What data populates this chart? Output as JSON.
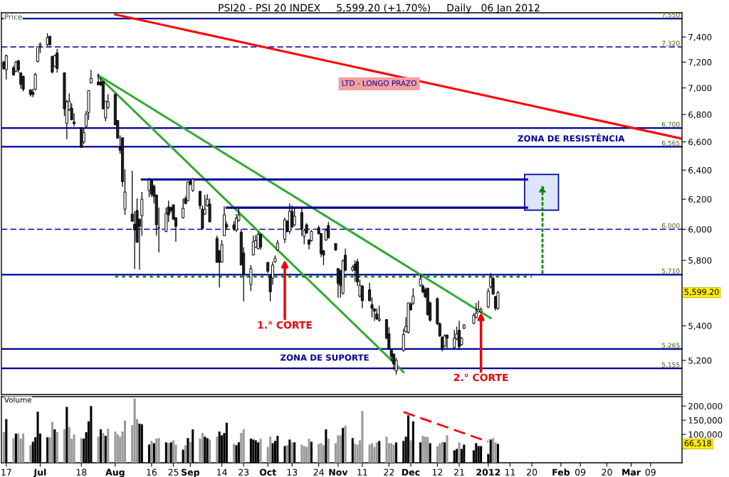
{
  "chart_data": [
    {
      "type": "candlestick",
      "title": "PSI20 - PSI 20 INDEX     5,599.20 (+1.70%)     Daily   06 Jan 2012",
      "ylabel": "Price",
      "x": [
        "2011-06-16",
        "2011-06-17",
        "2011-06-20",
        "2011-06-21",
        "2011-06-22",
        "2011-06-23",
        "2011-06-24",
        "2011-06-27",
        "2011-06-28",
        "2011-06-29",
        "2011-06-30",
        "2011-07-01",
        "2011-07-04",
        "2011-07-05",
        "2011-07-06",
        "2011-07-07",
        "2011-07-08",
        "2011-07-11",
        "2011-07-12",
        "2011-07-13",
        "2011-07-14",
        "2011-07-15",
        "2011-07-18",
        "2011-07-19",
        "2011-07-20",
        "2011-07-21",
        "2011-07-22",
        "2011-07-25",
        "2011-07-26",
        "2011-07-27",
        "2011-07-28",
        "2011-07-29",
        "2011-08-01",
        "2011-08-02",
        "2011-08-03",
        "2011-08-04",
        "2011-08-05",
        "2011-08-08",
        "2011-08-09",
        "2011-08-10",
        "2011-08-11",
        "2011-08-12",
        "2011-08-15",
        "2011-08-16",
        "2011-08-17",
        "2011-08-18",
        "2011-08-19",
        "2011-08-22",
        "2011-08-23",
        "2011-08-24",
        "2011-08-25",
        "2011-08-26",
        "2011-08-29",
        "2011-08-30",
        "2011-08-31",
        "2011-09-01",
        "2011-09-02",
        "2011-09-05",
        "2011-09-06",
        "2011-09-07",
        "2011-09-08",
        "2011-09-09",
        "2011-09-12",
        "2011-09-13",
        "2011-09-14",
        "2011-09-15",
        "2011-09-16",
        "2011-09-19",
        "2011-09-20",
        "2011-09-21",
        "2011-09-22",
        "2011-09-23",
        "2011-09-26",
        "2011-09-27",
        "2011-09-28",
        "2011-09-29",
        "2011-09-30",
        "2011-10-03",
        "2011-10-04",
        "2011-10-05",
        "2011-10-06",
        "2011-10-07",
        "2011-10-10",
        "2011-10-11",
        "2011-10-12",
        "2011-10-13",
        "2011-10-14",
        "2011-10-17",
        "2011-10-18",
        "2011-10-19",
        "2011-10-20",
        "2011-10-21",
        "2011-10-24",
        "2011-10-25",
        "2011-10-26",
        "2011-10-27",
        "2011-10-28",
        "2011-10-31",
        "2011-11-01",
        "2011-11-02",
        "2011-11-03",
        "2011-11-04",
        "2011-11-07",
        "2011-11-08",
        "2011-11-09",
        "2011-11-10",
        "2011-11-11",
        "2011-11-14",
        "2011-11-15",
        "2011-11-16",
        "2011-11-17",
        "2011-11-18",
        "2011-11-21",
        "2011-11-22",
        "2011-11-23",
        "2011-11-24",
        "2011-11-25",
        "2011-11-28",
        "2011-11-29",
        "2011-11-30",
        "2011-12-01",
        "2011-12-02",
        "2011-12-05",
        "2011-12-06",
        "2011-12-07",
        "2011-12-08",
        "2011-12-09",
        "2011-12-12",
        "2011-12-13",
        "2011-12-14",
        "2011-12-15",
        "2011-12-16",
        "2011-12-19",
        "2011-12-20",
        "2011-12-21",
        "2011-12-22",
        "2011-12-23",
        "2011-12-27",
        "2011-12-28",
        "2011-12-29",
        "2011-12-30",
        "2012-01-02",
        "2012-01-03",
        "2012-01-04",
        "2012-01-05",
        "2012-01-06"
      ],
      "ohlc": [
        [
          7200,
          7210,
          7140,
          7150
        ],
        [
          7140,
          7260,
          7065,
          7250
        ],
        [
          7155,
          7172,
          7094,
          7100
        ],
        [
          7128,
          7210,
          7120,
          7200
        ],
        [
          7210,
          7217,
          7117,
          7140
        ],
        [
          7117,
          7117,
          6995,
          7028
        ],
        [
          7089,
          7094,
          6973,
          6990
        ],
        [
          6985,
          6990,
          6935,
          6950
        ],
        [
          6968,
          6995,
          6930,
          6950
        ],
        [
          6990,
          7115,
          6980,
          7105
        ],
        [
          7205,
          7322,
          7200,
          7322
        ],
        [
          7333,
          7356,
          7272,
          7344
        ],
        [
          7339,
          7430,
          7328,
          7395
        ],
        [
          7405,
          7410,
          7328,
          7339
        ],
        [
          7245,
          7250,
          7111,
          7122
        ],
        [
          7167,
          7260,
          7161,
          7250
        ],
        [
          7272,
          7305,
          7117,
          7150
        ],
        [
          7117,
          7117,
          6790,
          6842
        ],
        [
          6733,
          6910,
          6620,
          6895
        ],
        [
          6837,
          6958,
          6826,
          6900
        ],
        [
          6847,
          6884,
          6760,
          6760
        ],
        [
          6744,
          6810,
          6713,
          6733
        ],
        [
          6703,
          6703,
          6559,
          6560
        ],
        [
          6600,
          6697,
          6585,
          6667
        ],
        [
          6713,
          6826,
          6697,
          6805
        ],
        [
          6815,
          6979,
          6760,
          6979
        ],
        [
          7039,
          7139,
          7034,
          7072
        ],
        [
          7045,
          7111,
          7020,
          7023
        ],
        [
          7045,
          7080,
          7015,
          7023
        ],
        [
          7050,
          7050,
          6842,
          6842
        ],
        [
          6775,
          6900,
          6750,
          6900
        ],
        [
          6852,
          6952,
          6840,
          6895
        ],
        [
          6952,
          6952,
          6723,
          6723
        ],
        [
          6755,
          6760,
          6626,
          6626
        ],
        [
          6559,
          6646,
          6515,
          6540
        ],
        [
          6630,
          6630,
          6283,
          6320
        ],
        [
          6133,
          6405,
          6095,
          6249
        ],
        [
          6100,
          6395,
          6052,
          6052
        ],
        [
          6033,
          6119,
          5745,
          5995
        ],
        [
          6124,
          6205,
          5915,
          5915
        ],
        [
          6067,
          6067,
          5740,
          6019
        ],
        [
          6090,
          6249,
          5958,
          6200
        ],
        [
          6259,
          6346,
          6215,
          6332
        ],
        [
          6327,
          6330,
          6215,
          6234
        ],
        [
          6288,
          6300,
          6171,
          6220
        ],
        [
          6229,
          6229,
          5958,
          6029
        ],
        [
          6010,
          6143,
          5851,
          6010
        ],
        [
          5986,
          6143,
          5980,
          6105
        ],
        [
          6148,
          6190,
          6048,
          6095
        ],
        [
          6143,
          6150,
          6110,
          6124
        ],
        [
          6162,
          6165,
          6060,
          6067
        ],
        [
          6076,
          6080,
          5919,
          6019
        ],
        [
          6076,
          6205,
          6070,
          6138
        ],
        [
          6205,
          6220,
          6165,
          6171
        ],
        [
          6190,
          6322,
          6185,
          6317
        ],
        [
          6322,
          6337,
          6295,
          6302
        ],
        [
          6259,
          6346,
          6250,
          6337
        ],
        [
          6254,
          6254,
          6133,
          6157
        ],
        [
          6133,
          6157,
          6005,
          6005
        ],
        [
          6100,
          6229,
          6095,
          6133
        ],
        [
          6157,
          6234,
          6150,
          6200
        ],
        [
          6167,
          6205,
          6048,
          6048
        ],
        [
          5940,
          5958,
          5787,
          5787
        ],
        [
          5860,
          5865,
          5630,
          5787
        ],
        [
          5790,
          5930,
          5785,
          5900
        ],
        [
          5958,
          6152,
          5958,
          6095
        ],
        [
          6030,
          6050,
          6000,
          6015
        ],
        [
          6029,
          6052,
          5990,
          6005
        ],
        [
          5995,
          6100,
          5981,
          6071
        ],
        [
          6057,
          6143,
          6050,
          6095
        ],
        [
          5981,
          6000,
          5770,
          5770
        ],
        [
          5847,
          5884,
          5546,
          5716
        ],
        [
          5649,
          5770,
          5609,
          5748
        ],
        [
          5835,
          5958,
          5830,
          5919
        ],
        [
          5884,
          5962,
          5880,
          5926
        ],
        [
          5875,
          5981,
          5870,
          5967
        ],
        [
          5967,
          5970,
          5866,
          5884
        ],
        [
          5787,
          5790,
          5720,
          5731
        ],
        [
          5702,
          5710,
          5546,
          5604
        ],
        [
          5689,
          5791,
          5648,
          5770
        ],
        [
          5791,
          5830,
          5785,
          5813
        ],
        [
          5866,
          5930,
          5860,
          5910
        ],
        [
          5935,
          6076,
          5910,
          6062
        ],
        [
          6052,
          6060,
          5980,
          5986
        ],
        [
          5986,
          6171,
          5970,
          6119
        ],
        [
          6119,
          6157,
          6010,
          6014
        ],
        [
          6029,
          6143,
          6020,
          6086
        ],
        [
          6110,
          6143,
          5958,
          6000
        ],
        [
          5953,
          5995,
          5902,
          5991
        ],
        [
          6029,
          6040,
          5970,
          5976
        ],
        [
          5930,
          5935,
          5870,
          5903
        ],
        [
          5926,
          5995,
          5920,
          5986
        ],
        [
          6010,
          6024,
          5965,
          5972
        ],
        [
          5972,
          5975,
          5820,
          5842
        ],
        [
          5861,
          5865,
          5770,
          5833
        ],
        [
          5930,
          6005,
          5925,
          5991
        ],
        [
          6024,
          6048,
          5940,
          5944
        ],
        [
          5907,
          5910,
          5860,
          5866
        ],
        [
          5748,
          5750,
          5568,
          5656
        ],
        [
          5735,
          5740,
          5568,
          5643
        ],
        [
          5596,
          5806,
          5588,
          5796
        ],
        [
          5833,
          5875,
          5730,
          5738
        ],
        [
          5738,
          5770,
          5730,
          5756
        ],
        [
          5775,
          5800,
          5665,
          5738
        ],
        [
          5791,
          5810,
          5640,
          5665
        ],
        [
          5578,
          5680,
          5570,
          5643
        ],
        [
          5639,
          5645,
          5504,
          5550
        ],
        [
          5617,
          5660,
          5545,
          5550
        ],
        [
          5525,
          5570,
          5450,
          5504
        ],
        [
          5500,
          5505,
          5429,
          5487
        ],
        [
          5470,
          5504,
          5435,
          5441
        ],
        [
          5433,
          5520,
          5425,
          5441
        ],
        [
          5437,
          5440,
          5320,
          5328
        ],
        [
          5353,
          5392,
          5261,
          5265
        ],
        [
          5261,
          5265,
          5196,
          5222
        ],
        [
          5235,
          5240,
          5146,
          5180
        ],
        [
          5141,
          5214,
          5120,
          5200
        ],
        [
          5256,
          5384,
          5250,
          5349
        ],
        [
          5366,
          5450,
          5360,
          5396
        ],
        [
          5362,
          5537,
          5355,
          5537
        ],
        [
          5529,
          5540,
          5490,
          5496
        ],
        [
          5533,
          5626,
          5525,
          5578
        ],
        [
          5643,
          5712,
          5635,
          5683
        ],
        [
          5639,
          5650,
          5595,
          5604
        ],
        [
          5617,
          5630,
          5565,
          5574
        ],
        [
          5626,
          5630,
          5460,
          5466
        ],
        [
          5537,
          5545,
          5425,
          5433
        ],
        [
          5563,
          5570,
          5405,
          5412
        ],
        [
          5412,
          5420,
          5335,
          5341
        ],
        [
          5332,
          5340,
          5252,
          5265
        ],
        [
          5282,
          5350,
          5275,
          5341
        ],
        [
          5345,
          5350,
          5270,
          5328
        ],
        [
          5274,
          5375,
          5265,
          5328
        ],
        [
          5324,
          5395,
          5315,
          5353
        ],
        [
          5374,
          5430,
          5260,
          5278
        ],
        [
          5290,
          5335,
          5285,
          5328
        ],
        [
          5387,
          5410,
          5380,
          5404
        ],
        [
          5416,
          5475,
          5410,
          5462
        ],
        [
          5450,
          5537,
          5445,
          5475
        ],
        [
          5483,
          5550,
          5478,
          5496
        ],
        [
          5483,
          5510,
          5475,
          5496
        ],
        [
          5512,
          5626,
          5505,
          5608
        ],
        [
          5634,
          5720,
          5625,
          5694
        ],
        [
          5686,
          5700,
          5585,
          5591
        ],
        [
          5574,
          5580,
          5490,
          5504
        ],
        [
          5504,
          5610,
          5495,
          5599.2
        ]
      ],
      "log": true,
      "xlim": [
        "2011-06-15",
        "2012-03-22"
      ],
      "ylim": [
        5010,
        7598
      ],
      "yticks": [
        {
          "value": 5200,
          "label": "5,200"
        },
        {
          "value": 5400,
          "label": "5,400"
        },
        {
          "value": 5800,
          "label": "5,800"
        },
        {
          "value": 6000,
          "label": "6,000"
        },
        {
          "value": 6200,
          "label": "6,200"
        },
        {
          "value": 6400,
          "label": "6,400"
        },
        {
          "value": 6600,
          "label": "6,600"
        },
        {
          "value": 6800,
          "label": "6,800"
        },
        {
          "value": 7000,
          "label": "7,000"
        },
        {
          "value": 7200,
          "label": "7,200"
        },
        {
          "value": 7400,
          "label": "7,400"
        }
      ],
      "tick_labels": "y",
      "grid": false,
      "legend": false,
      "ref_lines": [
        {
          "axis": "y",
          "value": 7550,
          "label": "7,550",
          "color": "#000099"
        },
        {
          "axis": "y",
          "value": 7320,
          "label": "7,320",
          "color": "#000099",
          "line_style": "dashed"
        },
        {
          "axis": "y",
          "value": 6700,
          "label": "6,700",
          "color": "#000099"
        },
        {
          "axis": "y",
          "value": 6565,
          "label": "6,565",
          "color": "#000099"
        },
        {
          "axis": "y",
          "value": 6000,
          "label": "6,000",
          "color": "#000099",
          "line_style": "dashed"
        },
        {
          "axis": "y",
          "value": 5710,
          "label": "5,710",
          "color": "#000099"
        },
        {
          "axis": "y",
          "value": 5265,
          "label": "5,265",
          "color": "#000099"
        },
        {
          "axis": "y",
          "value": 5155,
          "label": "5,155",
          "color": "#000099"
        }
      ],
      "series": [
        {
          "type": "line",
          "color": "#ff0000",
          "x": [
            "2011-08-01",
            "2012-03-22"
          ],
          "values": [
            7584,
            6623
          ]
        },
        {
          "type": "line",
          "color": "#33aa33",
          "x": [
            "2011-07-25",
            "2012-01-03"
          ],
          "values": [
            7097,
            5446
          ]
        },
        {
          "type": "line",
          "color": "#33aa33",
          "x": [
            "2011-07-25",
            "2011-11-28"
          ],
          "values": [
            7090,
            5135
          ]
        },
        {
          "type": "line",
          "color": "#000099",
          "x": [
            "2011-08-12",
            "2012-01-18"
          ],
          "values": [
            6335,
            6335
          ]
        },
        {
          "type": "line",
          "color": "#000099",
          "x": [
            "2011-09-16",
            "2012-01-18"
          ],
          "values": [
            6143,
            6143
          ]
        },
        {
          "type": "line",
          "color": "#008800",
          "line_style": "dotted",
          "x": [
            "2011-08-01",
            "2012-01-20"
          ],
          "values": [
            5698,
            5698
          ]
        },
        {
          "type": "bar",
          "color": "#dde4fb",
          "x": [
            "2012-01-24"
          ],
          "base": [
            6126
          ],
          "values": [
            244
          ]
        }
      ],
      "annotations": [
        "LTD - LONGO PRAZO",
        "ZONA DE RESISTÊNCIA",
        "ZONA DE SUPORTE",
        "5,599.20",
        {
          "text": "1.° CORTE",
          "x": "2011-10-10",
          "y": 5803
        },
        {
          "text": "2.° CORTE",
          "x": "2011-12-30",
          "y": 5480
        }
      ]
    },
    {
      "type": "bar",
      "ylabel": "Volume",
      "x": [
        "2011-06-16",
        "2011-06-17",
        "2011-06-20",
        "2011-06-21",
        "2011-06-22",
        "2011-06-23",
        "2011-06-24",
        "2011-06-27",
        "2011-06-28",
        "2011-06-29",
        "2011-06-30",
        "2011-07-01",
        "2011-07-04",
        "2011-07-05",
        "2011-07-06",
        "2011-07-07",
        "2011-07-08",
        "2011-07-11",
        "2011-07-12",
        "2011-07-13",
        "2011-07-14",
        "2011-07-15",
        "2011-07-18",
        "2011-07-19",
        "2011-07-20",
        "2011-07-21",
        "2011-07-22",
        "2011-07-25",
        "2011-07-26",
        "2011-07-27",
        "2011-07-28",
        "2011-07-29",
        "2011-08-01",
        "2011-08-02",
        "2011-08-03",
        "2011-08-04",
        "2011-08-05",
        "2011-08-08",
        "2011-08-09",
        "2011-08-10",
        "2011-08-11",
        "2011-08-12",
        "2011-08-15",
        "2011-08-16",
        "2011-08-17",
        "2011-08-18",
        "2011-08-19",
        "2011-08-22",
        "2011-08-23",
        "2011-08-24",
        "2011-08-25",
        "2011-08-26",
        "2011-08-29",
        "2011-08-30",
        "2011-08-31",
        "2011-09-01",
        "2011-09-02",
        "2011-09-05",
        "2011-09-06",
        "2011-09-07",
        "2011-09-08",
        "2011-09-09",
        "2011-09-12",
        "2011-09-13",
        "2011-09-14",
        "2011-09-15",
        "2011-09-16",
        "2011-09-19",
        "2011-09-20",
        "2011-09-21",
        "2011-09-22",
        "2011-09-23",
        "2011-09-26",
        "2011-09-27",
        "2011-09-28",
        "2011-09-29",
        "2011-09-30",
        "2011-10-03",
        "2011-10-04",
        "2011-10-05",
        "2011-10-06",
        "2011-10-07",
        "2011-10-10",
        "2011-10-11",
        "2011-10-12",
        "2011-10-13",
        "2011-10-14",
        "2011-10-17",
        "2011-10-18",
        "2011-10-19",
        "2011-10-20",
        "2011-10-21",
        "2011-10-24",
        "2011-10-25",
        "2011-10-26",
        "2011-10-27",
        "2011-10-28",
        "2011-10-31",
        "2011-11-01",
        "2011-11-02",
        "2011-11-03",
        "2011-11-04",
        "2011-11-07",
        "2011-11-08",
        "2011-11-09",
        "2011-11-10",
        "2011-11-11",
        "2011-11-14",
        "2011-11-15",
        "2011-11-16",
        "2011-11-17",
        "2011-11-18",
        "2011-11-21",
        "2011-11-22",
        "2011-11-23",
        "2011-11-24",
        "2011-11-25",
        "2011-11-28",
        "2011-11-29",
        "2011-11-30",
        "2011-12-01",
        "2011-12-02",
        "2011-12-05",
        "2011-12-06",
        "2011-12-07",
        "2011-12-08",
        "2011-12-09",
        "2011-12-12",
        "2011-12-13",
        "2011-12-14",
        "2011-12-15",
        "2011-12-16",
        "2011-12-19",
        "2011-12-20",
        "2011-12-21",
        "2011-12-22",
        "2011-12-23",
        "2011-12-27",
        "2011-12-28",
        "2011-12-29",
        "2011-12-30",
        "2012-01-02",
        "2012-01-03",
        "2012-01-04",
        "2012-01-05",
        "2012-01-06"
      ],
      "values": [
        108000,
        154000,
        87000,
        103000,
        103000,
        85000,
        103000,
        62000,
        74000,
        90000,
        180000,
        103000,
        90000,
        90000,
        144000,
        118000,
        108000,
        118000,
        197000,
        126000,
        85000,
        100000,
        87000,
        85000,
        108000,
        146000,
        200000,
        92000,
        118000,
        105000,
        95000,
        120000,
        110000,
        100000,
        92000,
        110000,
        149000,
        133000,
        226000,
        154000,
        138000,
        136000,
        64000,
        77000,
        69000,
        85000,
        87000,
        72000,
        69000,
        72000,
        79000,
        64000,
        46000,
        62000,
        87000,
        74000,
        118000,
        85000,
        105000,
        92000,
        87000,
        82000,
        92000,
        110000,
        97000,
        105000,
        141000,
        67000,
        62000,
        72000,
        105000,
        118000,
        85000,
        82000,
        79000,
        72000,
        85000,
        56000,
        92000,
        69000,
        77000,
        95000,
        59000,
        62000,
        82000,
        72000,
        72000,
        64000,
        59000,
        56000,
        85000,
        74000,
        67000,
        69000,
        62000,
        118000,
        85000,
        69000,
        97000,
        97000,
        123000,
        131000,
        87000,
        67000,
        64000,
        79000,
        182000,
        64000,
        69000,
        56000,
        72000,
        77000,
        92000,
        69000,
        69000,
        64000,
        72000,
        77000,
        92000,
        167000,
        79000,
        146000,
        72000,
        95000,
        92000,
        90000,
        69000,
        59000,
        69000,
        74000,
        72000,
        97000,
        44000,
        49000,
        72000,
        49000,
        64000,
        44000,
        69000,
        59000,
        59000,
        31000,
        82000,
        87000,
        72000,
        66518
      ],
      "colors": [
        "#999999",
        "#000000",
        "#999999",
        "#000000",
        "#999999",
        "#999999",
        "#999999",
        "#999999",
        "#000000",
        "#000000",
        "#000000",
        "#000000",
        "#000000",
        "#999999",
        "#999999",
        "#000000",
        "#999999",
        "#999999",
        "#000000",
        "#999999",
        "#999999",
        "#999999",
        "#999999",
        "#000000",
        "#000000",
        "#000000",
        "#000000",
        "#999999",
        "#000000",
        "#999999",
        "#000000",
        "#999999",
        "#999999",
        "#999999",
        "#999999",
        "#999999",
        "#999999",
        "#999999",
        "#999999",
        "#999999",
        "#000000",
        "#000000",
        "#000000",
        "#999999",
        "#000000",
        "#999999",
        "#999999",
        "#000000",
        "#999999",
        "#000000",
        "#999999",
        "#999999",
        "#000000",
        "#999999",
        "#000000",
        "#999999",
        "#000000",
        "#999999",
        "#999999",
        "#000000",
        "#000000",
        "#999999",
        "#999999",
        "#000000",
        "#000000",
        "#000000",
        "#000000",
        "#999999",
        "#000000",
        "#000000",
        "#999999",
        "#999999",
        "#000000",
        "#000000",
        "#000000",
        "#000000",
        "#999999",
        "#999999",
        "#999999",
        "#000000",
        "#000000",
        "#000000",
        "#000000",
        "#999999",
        "#000000",
        "#999999",
        "#000000",
        "#999999",
        "#999999",
        "#999999",
        "#999999",
        "#000000",
        "#999999",
        "#999999",
        "#999999",
        "#000000",
        "#999999",
        "#999999",
        "#999999",
        "#999999",
        "#000000",
        "#999999",
        "#000000",
        "#999999",
        "#999999",
        "#999999",
        "#999999",
        "#999999",
        "#999999",
        "#999999",
        "#999999",
        "#000000",
        "#999999",
        "#999999",
        "#999999",
        "#999999",
        "#000000",
        "#000000",
        "#000000",
        "#000000",
        "#999999",
        "#000000",
        "#000000",
        "#999999",
        "#999999",
        "#999999",
        "#000000",
        "#999999",
        "#999999",
        "#999999",
        "#000000",
        "#999999",
        "#000000",
        "#000000",
        "#999999",
        "#000000",
        "#000000",
        "#000000",
        "#000000",
        "#000000",
        "#000000",
        "#000000",
        "#000000",
        "#999999",
        "#999999",
        "#000000"
      ],
      "xlim": [
        "2011-06-15",
        "2012-03-22"
      ],
      "ylim": [
        0,
        233000
      ],
      "xticks": [
        {
          "value": "2011-06-17",
          "label": "17"
        },
        {
          "value": "2011-07-01",
          "label": "Jul"
        },
        {
          "value": "2011-07-18",
          "label": "18"
        },
        {
          "value": "2011-08-01",
          "label": "Aug"
        },
        {
          "value": "2011-08-16",
          "label": "16"
        },
        {
          "value": "2011-08-25",
          "label": "25"
        },
        {
          "value": "2011-09-01",
          "label": "Sep"
        },
        {
          "value": "2011-09-14",
          "label": "14"
        },
        {
          "value": "2011-09-23",
          "label": "23"
        },
        {
          "value": "2011-10-03",
          "label": "Oct"
        },
        {
          "value": "2011-10-13",
          "label": "13"
        },
        {
          "value": "2011-10-24",
          "label": "24"
        },
        {
          "value": "2011-11-01",
          "label": "Nov"
        },
        {
          "value": "2011-11-11",
          "label": "11"
        },
        {
          "value": "2011-11-22",
          "label": "22"
        },
        {
          "value": "2011-12-01",
          "label": "Dec"
        },
        {
          "value": "2011-12-12",
          "label": "12"
        },
        {
          "value": "2011-12-21",
          "label": "21"
        },
        {
          "value": "2012-01-02",
          "label": "2012"
        },
        {
          "value": "2012-01-11",
          "label": "11"
        },
        {
          "value": "2012-01-20",
          "label": "20"
        },
        {
          "value": "2012-02-01",
          "label": "Feb"
        },
        {
          "value": "2012-02-09",
          "label": "09"
        },
        {
          "value": "2012-02-20",
          "label": "20"
        },
        {
          "value": "2012-03-01",
          "label": "Mar"
        },
        {
          "value": "2012-03-09",
          "label": "09"
        }
      ],
      "yticks": [
        {
          "value": 50000,
          "label": null
        },
        {
          "value": 100000,
          "label": "100,000"
        },
        {
          "value": 150000,
          "label": "150,000"
        },
        {
          "value": 200000,
          "label": "200,000"
        }
      ],
      "grid": false,
      "legend": false,
      "series": [
        {
          "type": "line",
          "color": "#ff0000",
          "line_style": "dashed",
          "x": [
            "2011-11-28",
            "2012-01-02"
          ],
          "values": [
            179000,
            74000
          ]
        }
      ],
      "annotations": [
        "66,518"
      ]
    }
  ]
}
